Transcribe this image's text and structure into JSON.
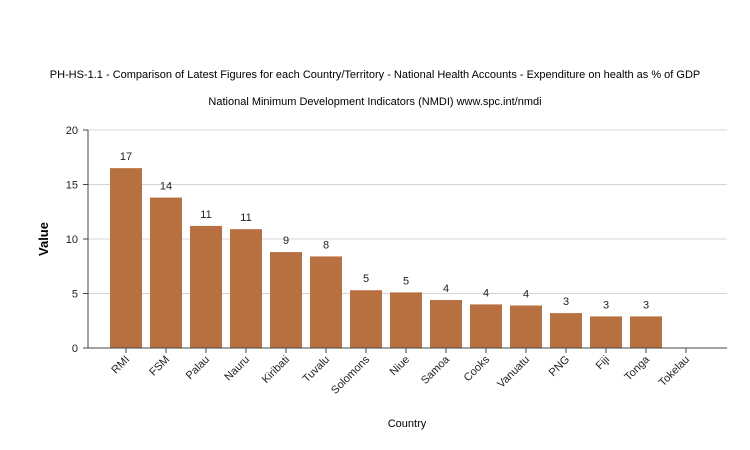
{
  "chart_data": {
    "type": "bar",
    "title": "PH-HS-1.1 - Comparison of Latest Figures for each Country/Territory - National Health Accounts - Expenditure on health as % of GDP",
    "subtitle": "National Minimum Development Indicators (NMDI) www.spc.int/nmdi",
    "xlabel": "Country",
    "ylabel": "Value",
    "ylim": [
      0,
      20
    ],
    "yticks": [
      0,
      5,
      10,
      15,
      20
    ],
    "grid": true,
    "categories": [
      "RMI",
      "FSM",
      "Palau",
      "Nauru",
      "Kiribati",
      "Tuvalu",
      "Solomons",
      "Niue",
      "Samoa",
      "Cooks",
      "Vanuatu",
      "PNG",
      "Fiji",
      "Tonga",
      "Tokelau"
    ],
    "values": [
      16.5,
      13.8,
      11.2,
      10.9,
      8.8,
      8.4,
      5.3,
      5.1,
      4.4,
      4.0,
      3.9,
      3.2,
      2.9,
      2.9,
      null
    ],
    "data_labels": [
      "17",
      "14",
      "11",
      "11",
      "9",
      "8",
      "5",
      "5",
      "4",
      "4",
      "4",
      "3",
      "3",
      "3",
      ""
    ],
    "bar_color": "#b87040"
  }
}
